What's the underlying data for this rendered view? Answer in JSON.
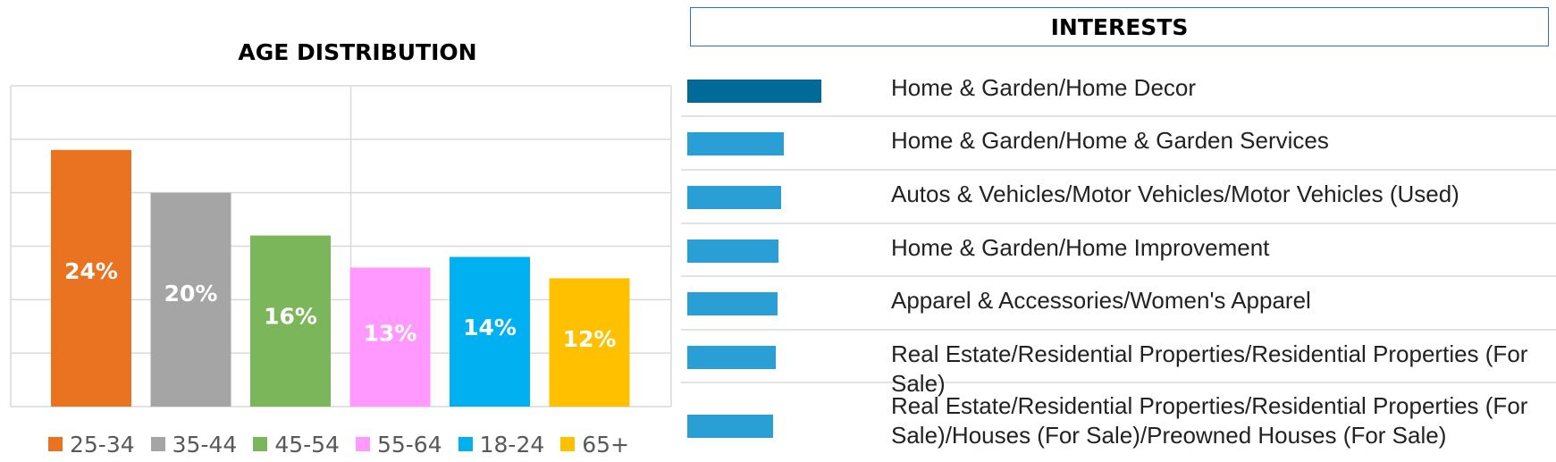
{
  "chart_data": [
    {
      "type": "bar",
      "title": "AGE DISTRIBUTION",
      "categories": [
        "25-34",
        "35-44",
        "45-54",
        "55-64",
        "18-24",
        "65+"
      ],
      "values": [
        24,
        20,
        16,
        13,
        14,
        12
      ],
      "value_labels": [
        "24%",
        "20%",
        "16%",
        "13%",
        "14%",
        "12%"
      ],
      "colors": [
        "#e97321",
        "#a5a5a5",
        "#7cb65a",
        "#ff99ff",
        "#00b0f0",
        "#ffc000"
      ],
      "ylim": [
        0,
        30
      ],
      "grid": true,
      "legend_position": "bottom"
    },
    {
      "type": "bar",
      "orientation": "horizontal",
      "title": "INTERESTS",
      "categories": [
        "Home & Garden/Home Decor",
        "Home & Garden/Home & Garden Services",
        "Autos & Vehicles/Motor Vehicles/Motor Vehicles (Used)",
        "Home & Garden/Home Improvement",
        "Apparel & Accessories/Women's Apparel",
        "Real Estate/Residential Properties/Residential Properties (For Sale)",
        "Real Estate/Residential Properties/Residential Properties (For Sale)/Houses (For Sale)/Preowned Houses (For Sale)"
      ],
      "values": [
        100,
        72,
        70,
        68,
        67,
        66,
        64
      ],
      "colors": [
        "#006a99",
        "#2a9fd6",
        "#2a9fd6",
        "#2a9fd6",
        "#2a9fd6",
        "#2a9fd6",
        "#2a9fd6"
      ]
    }
  ]
}
